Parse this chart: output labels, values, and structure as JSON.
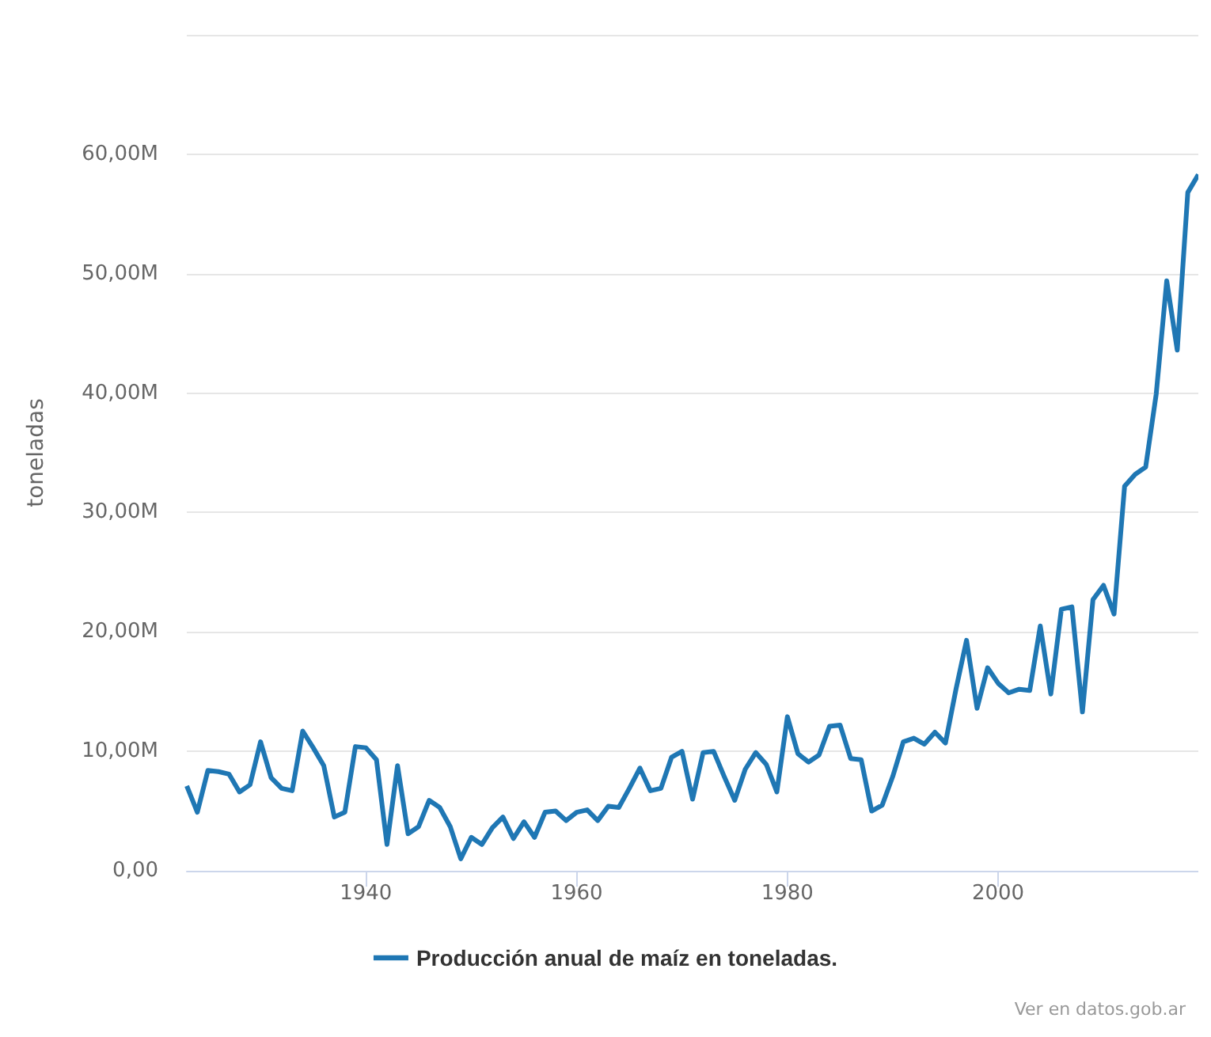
{
  "chart_data": {
    "type": "line",
    "ylabel": "toneladas",
    "x": [
      1923,
      1924,
      1925,
      1926,
      1927,
      1928,
      1929,
      1930,
      1931,
      1932,
      1933,
      1934,
      1935,
      1936,
      1937,
      1938,
      1939,
      1940,
      1941,
      1942,
      1943,
      1944,
      1945,
      1946,
      1947,
      1948,
      1949,
      1950,
      1951,
      1952,
      1953,
      1954,
      1955,
      1956,
      1957,
      1958,
      1959,
      1960,
      1961,
      1962,
      1963,
      1964,
      1965,
      1966,
      1967,
      1968,
      1969,
      1970,
      1971,
      1972,
      1973,
      1974,
      1975,
      1976,
      1977,
      1978,
      1979,
      1980,
      1981,
      1982,
      1983,
      1984,
      1985,
      1986,
      1987,
      1988,
      1989,
      1990,
      1991,
      1992,
      1993,
      1994,
      1995,
      1996,
      1997,
      1998,
      1999,
      2000,
      2001,
      2002,
      2003,
      2004,
      2005,
      2006,
      2007,
      2008,
      2009,
      2010,
      2011,
      2012,
      2013,
      2014,
      2015,
      2016,
      2017,
      2018,
      2019
    ],
    "series": [
      {
        "name": "Producción anual de maíz en toneladas.",
        "color": "#1f77b4",
        "values": [
          7.1,
          4.9,
          8.4,
          8.3,
          8.1,
          6.6,
          7.2,
          10.8,
          7.8,
          6.9,
          6.7,
          11.7,
          10.3,
          8.8,
          4.5,
          4.9,
          10.4,
          10.3,
          9.3,
          2.2,
          8.8,
          3.1,
          3.7,
          5.9,
          5.3,
          3.7,
          1.0,
          2.8,
          2.2,
          3.6,
          4.5,
          2.7,
          4.1,
          2.8,
          4.9,
          5.0,
          4.2,
          4.9,
          5.1,
          4.2,
          5.4,
          5.3,
          6.9,
          8.6,
          6.7,
          6.9,
          9.5,
          10.0,
          6.0,
          9.9,
          10.0,
          7.9,
          5.9,
          8.5,
          9.9,
          8.9,
          6.6,
          12.9,
          9.8,
          9.1,
          9.7,
          12.1,
          12.2,
          9.4,
          9.3,
          5.0,
          5.5,
          7.9,
          10.8,
          11.1,
          10.6,
          11.6,
          10.7,
          15.2,
          19.3,
          13.6,
          17.0,
          15.7,
          14.9,
          15.2,
          15.1,
          20.5,
          14.8,
          21.9,
          22.1,
          13.3,
          22.7,
          23.9,
          21.5,
          32.2,
          33.2,
          33.8,
          39.9,
          49.4,
          43.6,
          56.8,
          58.3
        ]
      }
    ],
    "xlim": [
      1923,
      2019
    ],
    "xticks": [
      1940,
      1960,
      1980,
      2000
    ],
    "ylim": [
      0,
      70
    ],
    "yticks": [
      {
        "value": 0,
        "label": "0,00"
      },
      {
        "value": 10,
        "label": "10,00M"
      },
      {
        "value": 20,
        "label": "20,00M"
      },
      {
        "value": 30,
        "label": "30,00M"
      },
      {
        "value": 40,
        "label": "40,00M"
      },
      {
        "value": 50,
        "label": "50,00M"
      },
      {
        "value": 60,
        "label": "60,00M"
      },
      {
        "value": 70,
        "label": null
      }
    ],
    "grid": "y",
    "legend": "bottom",
    "marker": "none",
    "line_style": "solid",
    "annotations": [
      "Ver en datos.gob.ar"
    ]
  }
}
